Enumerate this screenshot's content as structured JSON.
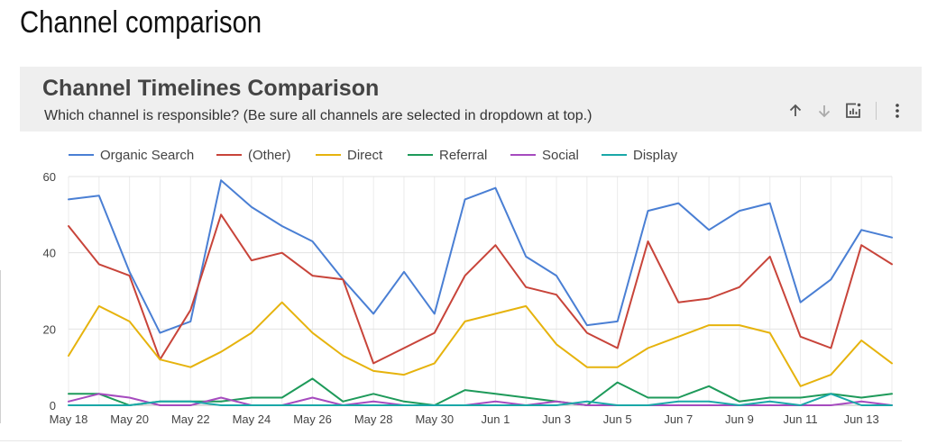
{
  "page": {
    "title": "Channel comparison"
  },
  "card": {
    "title": "Channel Timelines Comparison",
    "subtitle": "Which channel is responsible? (Be sure all channels are selected in dropdown at top.)",
    "actions": [
      {
        "name": "sort-ascending",
        "icon": "arrow-up-icon"
      },
      {
        "name": "sort-descending",
        "icon": "arrow-down-icon"
      },
      {
        "name": "explore-chart",
        "icon": "chart-explore-icon"
      },
      {
        "name": "more-options",
        "icon": "more-vertical-icon"
      }
    ]
  },
  "chart_data": {
    "type": "line",
    "title": "",
    "xlabel": "",
    "ylabel": "",
    "ylim": [
      0,
      60
    ],
    "yticks": [
      0,
      20,
      40,
      60
    ],
    "grid": true,
    "legend_position": "top",
    "x": [
      "May 18",
      "May 19",
      "May 20",
      "May 21",
      "May 22",
      "May 23",
      "May 24",
      "May 25",
      "May 26",
      "May 27",
      "May 28",
      "May 29",
      "May 30",
      "May 31",
      "Jun 1",
      "Jun 2",
      "Jun 3",
      "Jun 4",
      "Jun 5",
      "Jun 6",
      "Jun 7",
      "Jun 8",
      "Jun 9",
      "Jun 10",
      "Jun 11",
      "Jun 12",
      "Jun 13",
      "Jun 14"
    ],
    "xtick_labels": [
      "May 18",
      "May 20",
      "May 22",
      "May 24",
      "May 26",
      "May 28",
      "May 30",
      "Jun 1",
      "Jun 3",
      "Jun 5",
      "Jun 7",
      "Jun 9",
      "Jun 11",
      "Jun 13"
    ],
    "series": [
      {
        "name": "Organic Search",
        "color": "#4a7fd4",
        "values": [
          54,
          55,
          35,
          19,
          22,
          59,
          52,
          47,
          43,
          33,
          24,
          35,
          24,
          54,
          57,
          39,
          34,
          21,
          22,
          51,
          53,
          46,
          51,
          53,
          27,
          33,
          46,
          44
        ]
      },
      {
        "name": "(Other)",
        "color": "#c8443a",
        "values": [
          47,
          37,
          34,
          12,
          25,
          50,
          38,
          40,
          34,
          33,
          11,
          15,
          19,
          34,
          42,
          31,
          29,
          19,
          15,
          43,
          27,
          28,
          31,
          39,
          18,
          15,
          42,
          37
        ]
      },
      {
        "name": "Direct",
        "color": "#e6b30d",
        "values": [
          13,
          26,
          22,
          12,
          10,
          14,
          19,
          27,
          19,
          13,
          9,
          8,
          11,
          22,
          24,
          26,
          16,
          10,
          10,
          15,
          18,
          21,
          21,
          19,
          5,
          8,
          17,
          11
        ]
      },
      {
        "name": "Referral",
        "color": "#1e9a5a",
        "values": [
          3,
          3,
          0,
          1,
          1,
          1,
          2,
          2,
          7,
          1,
          3,
          1,
          0,
          4,
          3,
          2,
          1,
          0,
          6,
          2,
          2,
          5,
          1,
          2,
          2,
          3,
          2,
          3
        ]
      },
      {
        "name": "Social",
        "color": "#a64bbf",
        "values": [
          1,
          3,
          2,
          0,
          0,
          2,
          0,
          0,
          2,
          0,
          1,
          0,
          0,
          0,
          1,
          0,
          1,
          0,
          0,
          0,
          0,
          0,
          0,
          0,
          0,
          0,
          1,
          0
        ]
      },
      {
        "name": "Display",
        "color": "#1aa8a8",
        "values": [
          0,
          0,
          0,
          1,
          1,
          0,
          0,
          0,
          0,
          0,
          0,
          0,
          0,
          0,
          0,
          0,
          0,
          1,
          0,
          0,
          1,
          1,
          0,
          1,
          0,
          3,
          0,
          0
        ]
      }
    ]
  }
}
